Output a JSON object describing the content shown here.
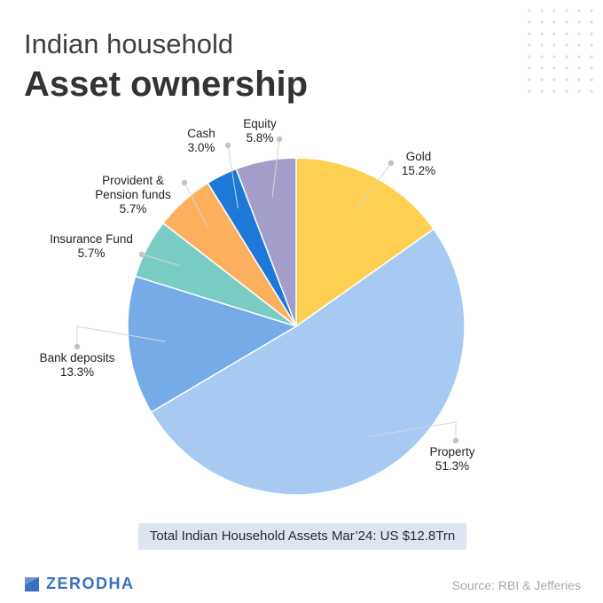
{
  "header": {
    "subtitle": "Indian household",
    "title": "Asset ownership"
  },
  "chart_data": {
    "type": "pie",
    "slices": [
      {
        "label_lines": [
          "Gold"
        ],
        "value": 15.2,
        "value_label": "15.2%",
        "color": "#fdd052"
      },
      {
        "label_lines": [
          "Property"
        ],
        "value": 51.3,
        "value_label": "51.3%",
        "color": "#a7caf3"
      },
      {
        "label_lines": [
          "Bank deposits"
        ],
        "value": 13.3,
        "value_label": "13.3%",
        "color": "#75ace8"
      },
      {
        "label_lines": [
          "Insurance Fund"
        ],
        "value": 5.7,
        "value_label": "5.7%",
        "color": "#7acdc4"
      },
      {
        "label_lines": [
          "Provident &",
          "Pension funds"
        ],
        "value": 5.7,
        "value_label": "5.7%",
        "color": "#fcb05e"
      },
      {
        "label_lines": [
          "Cash"
        ],
        "value": 3.0,
        "value_label": "3.0%",
        "color": "#1e78d8"
      },
      {
        "label_lines": [
          "Equity"
        ],
        "value": 5.8,
        "value_label": "5.8%",
        "color": "#a39ec9"
      }
    ],
    "start": "12 o'clock",
    "direction": "clockwise"
  },
  "callout": "Total Indian Household Assets Mar’24: US $12.8Trn",
  "brand": {
    "name": "ZERODHA",
    "color": "#3b6fc2"
  },
  "source": "Source: RBI & Jefferies"
}
